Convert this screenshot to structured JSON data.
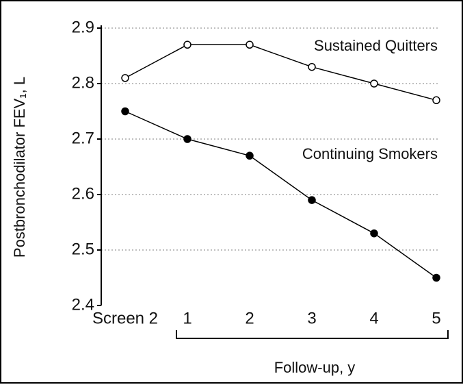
{
  "chart_data": {
    "type": "line",
    "y_label": "Postbronchodilator FEV₁, L",
    "x_label": "Follow-up, y",
    "categories": [
      "Screen 2",
      "1",
      "2",
      "3",
      "4",
      "5"
    ],
    "series": [
      {
        "name": "Sustained Quitters",
        "color": "#000000",
        "marker": "open",
        "values": [
          2.81,
          2.87,
          2.87,
          2.83,
          2.8,
          2.77
        ]
      },
      {
        "name": "Continuing Smokers",
        "color": "#000000",
        "marker": "filled",
        "values": [
          2.75,
          2.7,
          2.67,
          2.59,
          2.53,
          2.45
        ]
      }
    ],
    "ylim": [
      2.4,
      2.9
    ],
    "yticks": [
      2.4,
      2.5,
      2.6,
      2.7,
      2.8,
      2.9
    ],
    "grid": true
  }
}
